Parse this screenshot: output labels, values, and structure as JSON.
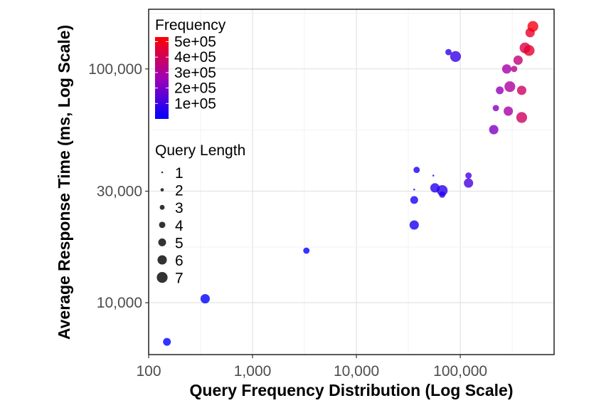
{
  "chart_data": {
    "type": "scatter",
    "xlabel": "Query Frequency Distribution (Log Scale)",
    "ylabel": "Average Response Time (ms, Log Scale)",
    "x_scale": "log10",
    "y_scale": "log10",
    "xlim": [
      100,
      800000
    ],
    "ylim": [
      6000,
      180000
    ],
    "x_ticks": [
      100,
      1000,
      10000,
      100000
    ],
    "x_tick_labels": [
      "100",
      "1,000",
      "10,000",
      "100,000"
    ],
    "y_ticks": [
      10000,
      30000,
      100000
    ],
    "y_tick_labels": [
      "10,000",
      "30,000",
      "100,000"
    ],
    "grid": true,
    "color_legend": {
      "title": "Frequency",
      "ticks": [
        100000,
        200000,
        300000,
        400000,
        500000
      ],
      "tick_labels": [
        "1e+05",
        "2e+05",
        "3e+05",
        "4e+05",
        "5e+05"
      ],
      "range": [
        0,
        530000
      ],
      "low_color": "#0000ff",
      "high_color": "#ff0000"
    },
    "size_legend": {
      "title": "Query Length",
      "values": [
        1,
        2,
        3,
        4,
        5,
        6,
        7
      ],
      "labels": [
        "1",
        "2",
        "3",
        "4",
        "5",
        "6",
        "7"
      ]
    },
    "legend_position": "top-left inside",
    "points": [
      {
        "x": 150,
        "y": 6800,
        "length": 5,
        "frequency": 150
      },
      {
        "x": 350,
        "y": 10400,
        "length": 6,
        "frequency": 350
      },
      {
        "x": 3300,
        "y": 16700,
        "length": 4,
        "frequency": 3300
      },
      {
        "x": 36000,
        "y": 21500,
        "length": 6,
        "frequency": 36000
      },
      {
        "x": 36000,
        "y": 27500,
        "length": 5,
        "frequency": 36000
      },
      {
        "x": 38000,
        "y": 37000,
        "length": 4,
        "frequency": 38000
      },
      {
        "x": 36000,
        "y": 30500,
        "length": 1,
        "frequency": 36000
      },
      {
        "x": 55000,
        "y": 35000,
        "length": 1,
        "frequency": 55000
      },
      {
        "x": 57000,
        "y": 31000,
        "length": 6,
        "frequency": 57000
      },
      {
        "x": 67000,
        "y": 30200,
        "length": 7,
        "frequency": 67000
      },
      {
        "x": 67000,
        "y": 29000,
        "length": 4,
        "frequency": 67000
      },
      {
        "x": 120000,
        "y": 35000,
        "length": 4,
        "frequency": 120000
      },
      {
        "x": 120000,
        "y": 32500,
        "length": 6,
        "frequency": 120000
      },
      {
        "x": 77000,
        "y": 118000,
        "length": 4,
        "frequency": 77000
      },
      {
        "x": 90000,
        "y": 113000,
        "length": 7,
        "frequency": 90000
      },
      {
        "x": 210000,
        "y": 55000,
        "length": 6,
        "frequency": 210000
      },
      {
        "x": 220000,
        "y": 68000,
        "length": 4,
        "frequency": 220000
      },
      {
        "x": 240000,
        "y": 81000,
        "length": 5,
        "frequency": 240000
      },
      {
        "x": 280000,
        "y": 100000,
        "length": 6,
        "frequency": 280000
      },
      {
        "x": 300000,
        "y": 84000,
        "length": 7,
        "frequency": 300000
      },
      {
        "x": 330000,
        "y": 100000,
        "length": 4,
        "frequency": 330000
      },
      {
        "x": 290000,
        "y": 66000,
        "length": 6,
        "frequency": 290000
      },
      {
        "x": 360000,
        "y": 109000,
        "length": 6,
        "frequency": 360000
      },
      {
        "x": 390000,
        "y": 81000,
        "length": 6,
        "frequency": 390000
      },
      {
        "x": 390000,
        "y": 62000,
        "length": 7,
        "frequency": 390000
      },
      {
        "x": 420000,
        "y": 123000,
        "length": 7,
        "frequency": 420000
      },
      {
        "x": 460000,
        "y": 120000,
        "length": 7,
        "frequency": 460000
      },
      {
        "x": 470000,
        "y": 143000,
        "length": 6,
        "frequency": 470000
      },
      {
        "x": 500000,
        "y": 152000,
        "length": 7,
        "frequency": 500000
      }
    ]
  }
}
